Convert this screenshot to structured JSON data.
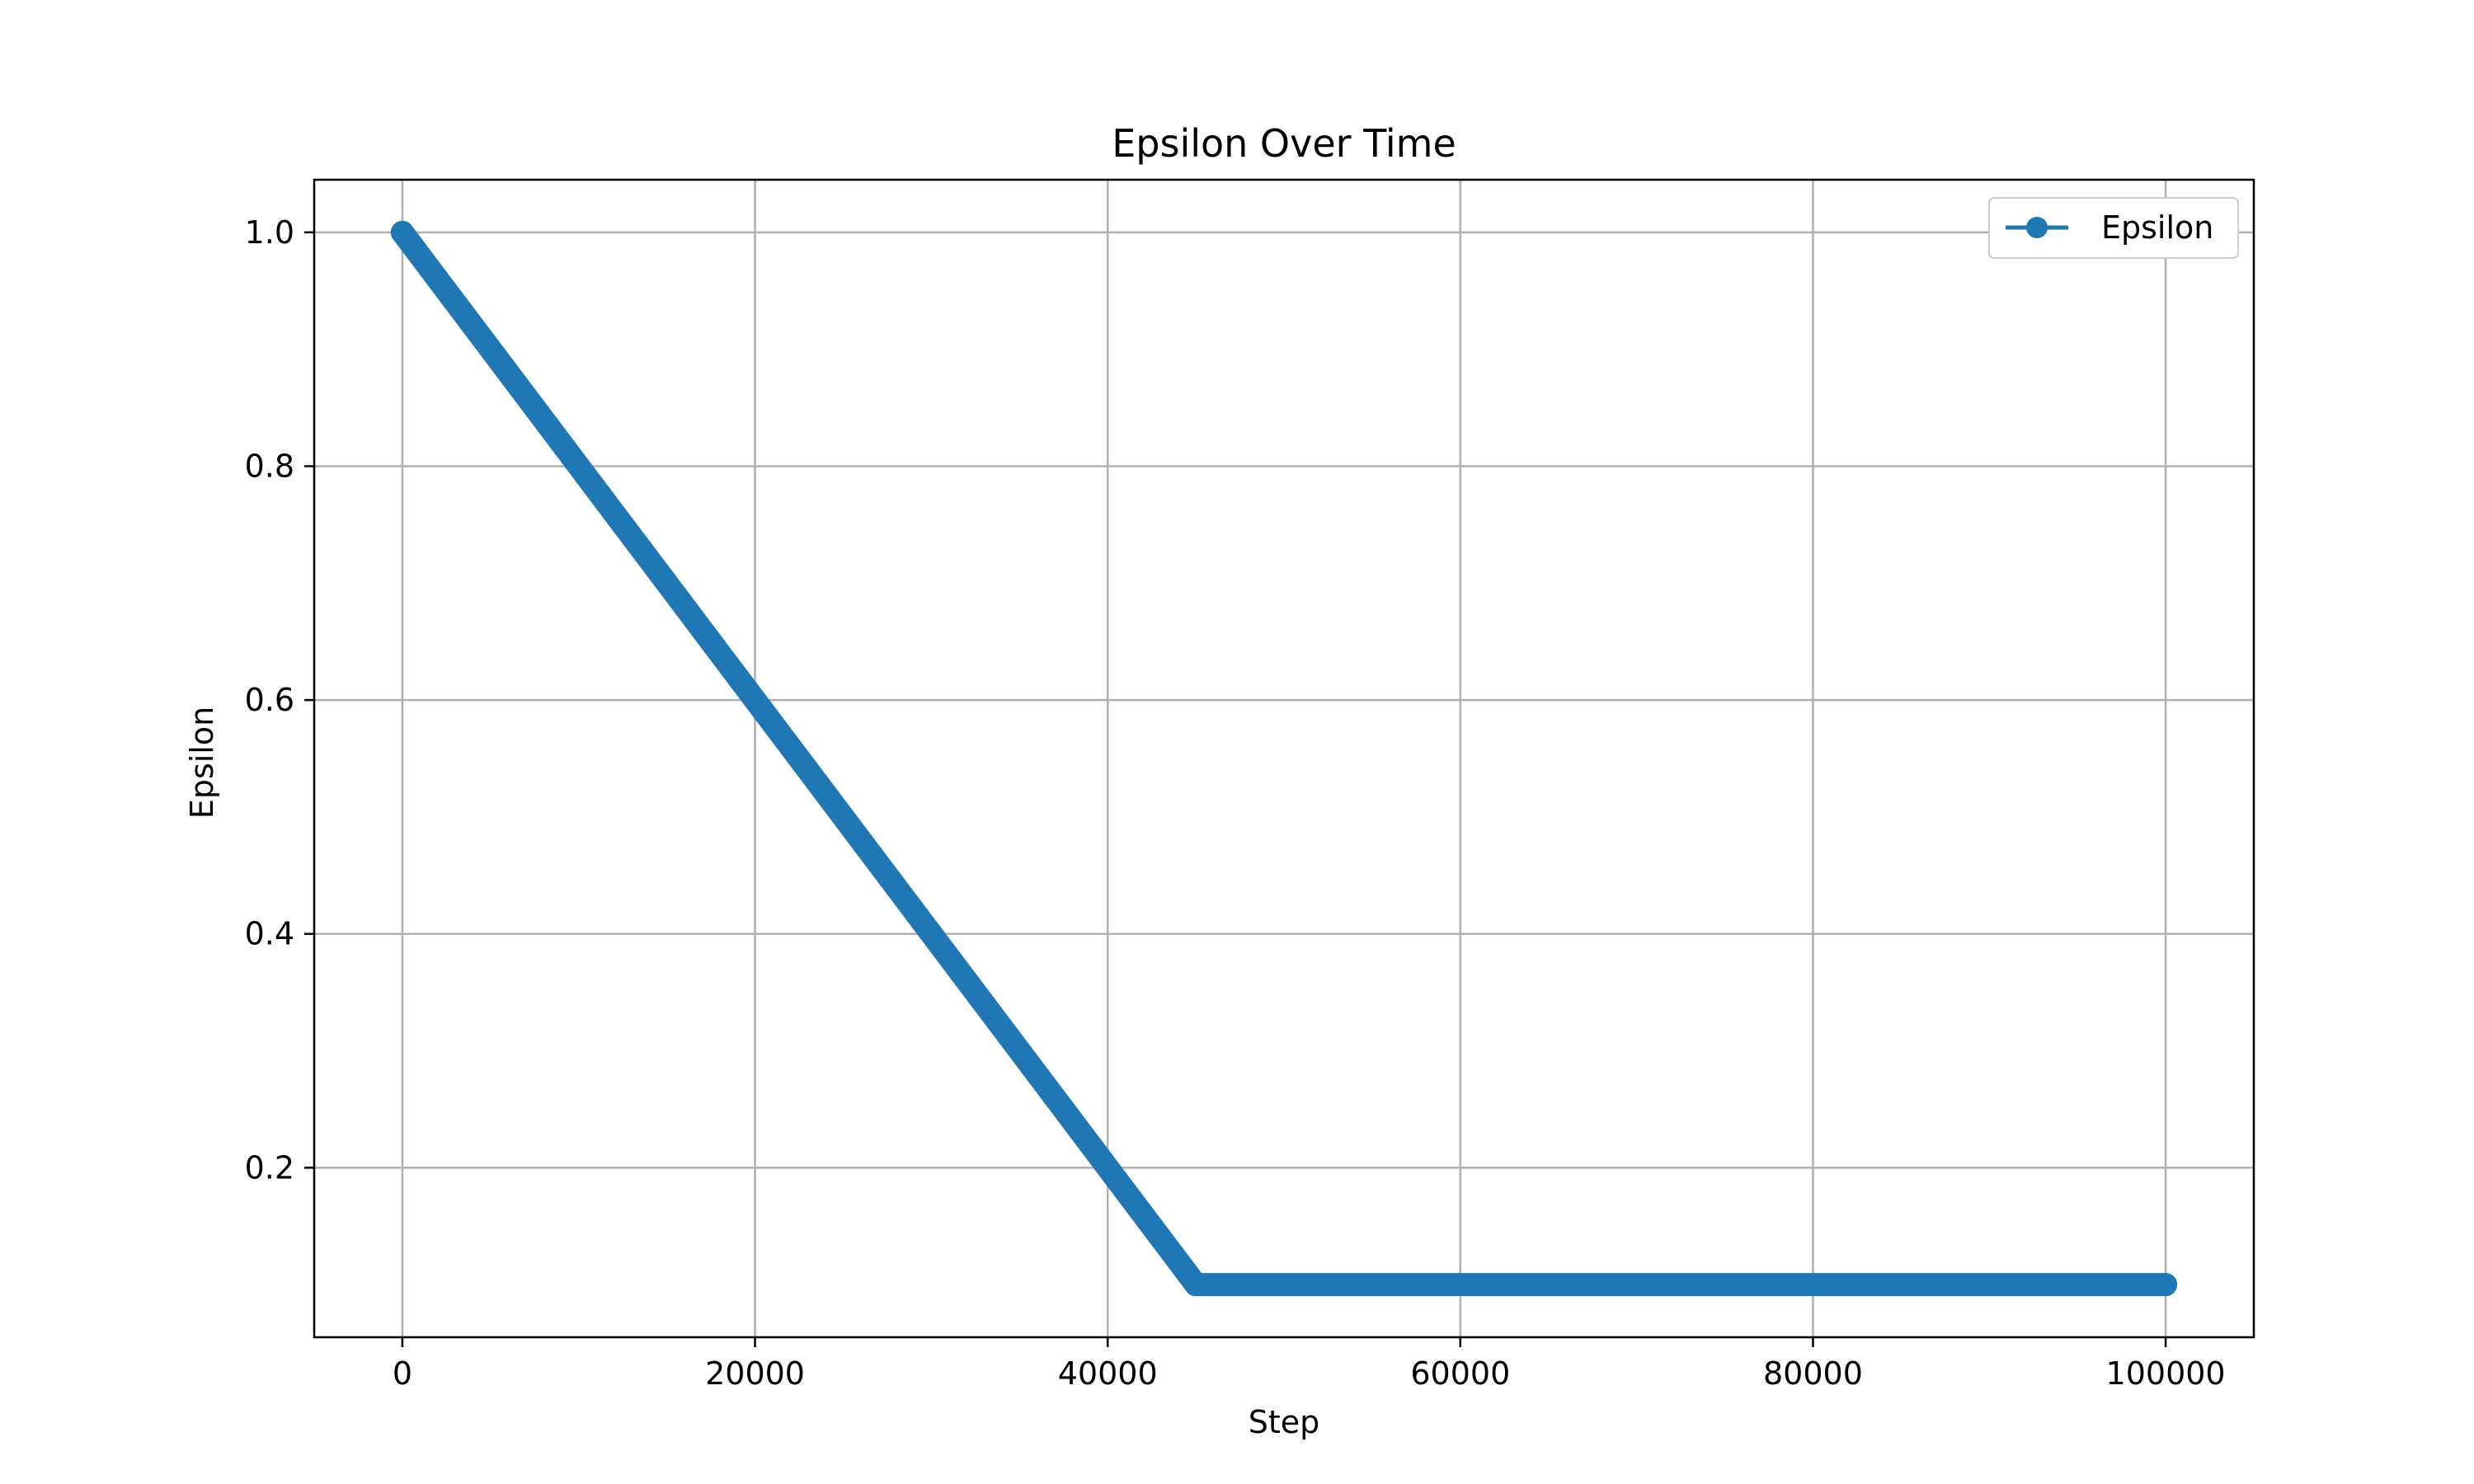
{
  "chart_data": {
    "type": "line",
    "title": "Epsilon Over Time",
    "xlabel": "Step",
    "ylabel": "Epsilon",
    "xlim": [
      -5000,
      105000
    ],
    "ylim": [
      0.055,
      1.045
    ],
    "x_ticks": [
      0,
      20000,
      40000,
      60000,
      80000,
      100000
    ],
    "x_tick_labels": [
      "0",
      "20000",
      "40000",
      "60000",
      "80000",
      "100000"
    ],
    "y_ticks": [
      0.2,
      0.4,
      0.6,
      0.8,
      1.0
    ],
    "y_tick_labels": [
      "0.2",
      "0.4",
      "0.6",
      "0.8",
      "1.0"
    ],
    "grid": true,
    "legend_position": "top-right",
    "series": [
      {
        "name": "Epsilon",
        "color": "#1f77b4",
        "marker": "circle",
        "x": [
          0,
          45000,
          100000
        ],
        "y": [
          1.0,
          0.1,
          0.1
        ]
      }
    ]
  }
}
